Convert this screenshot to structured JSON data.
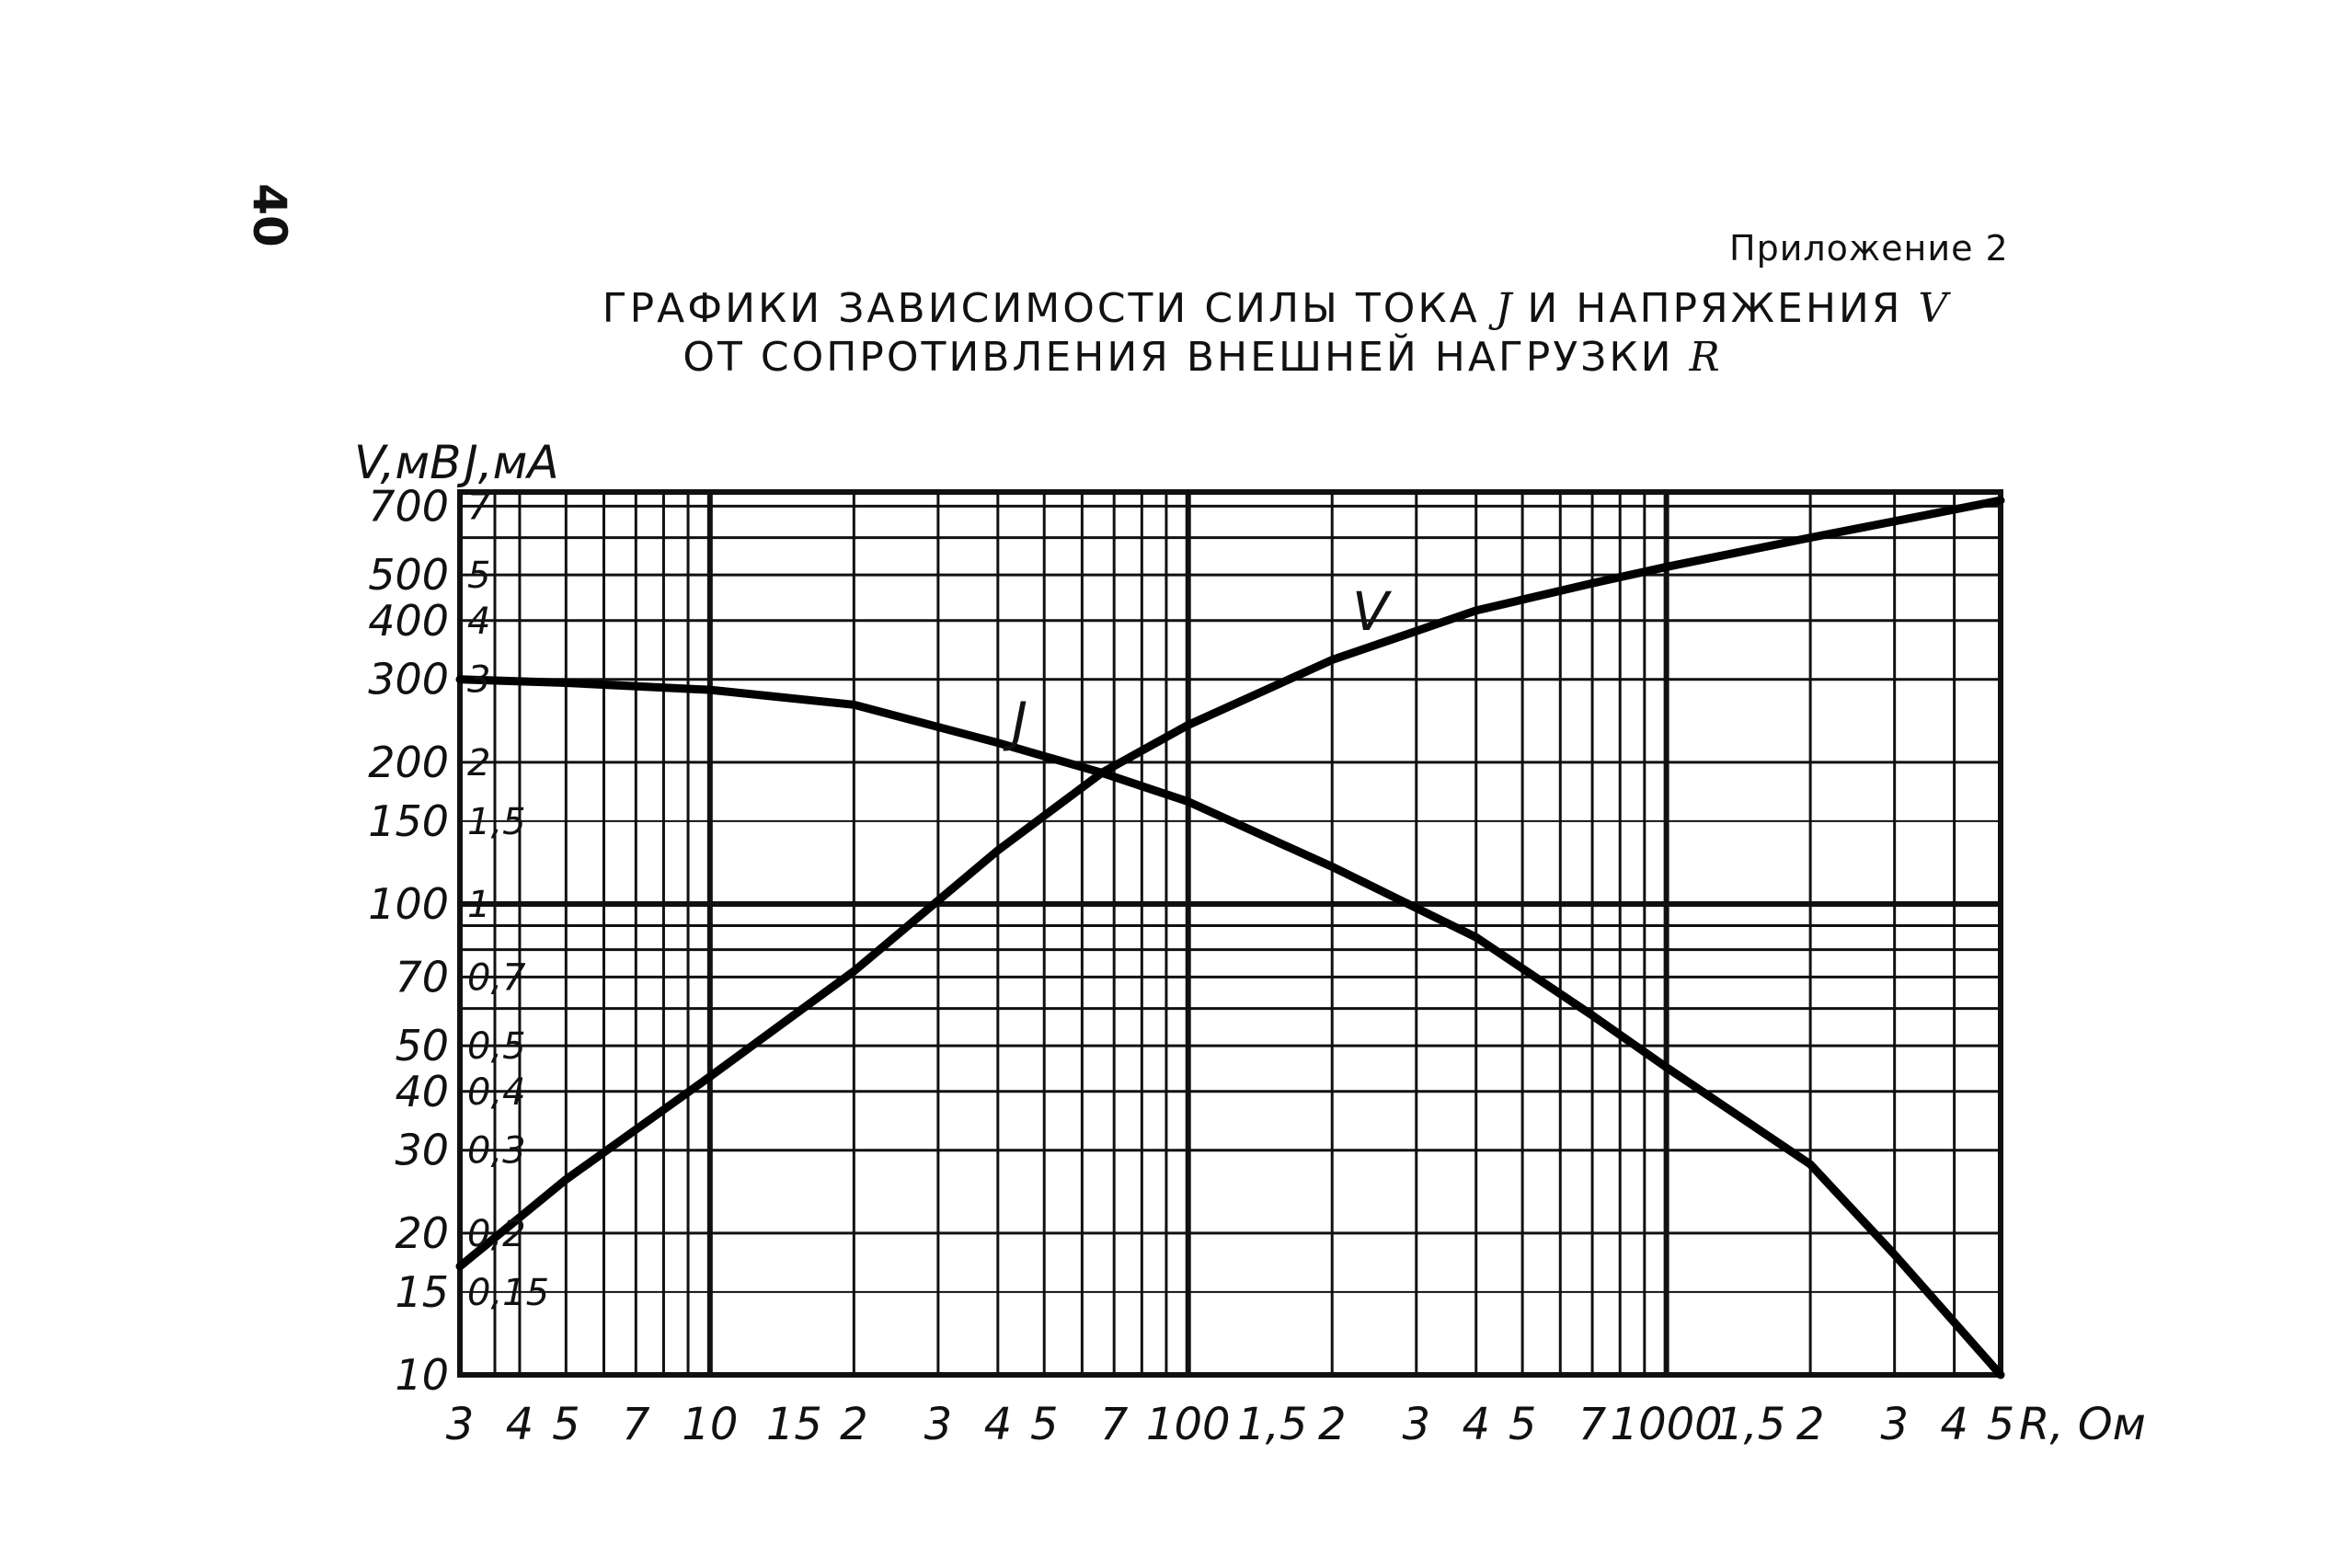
{
  "page_number": "40",
  "appendix": "Приложение 2",
  "title": {
    "line1": "ГРАФИКИ ЗАВИСИМОСТИ СИЛЫ ТОКА",
    "line1_var1": "J",
    "line1_mid": "И НАПРЯЖЕНИЯ",
    "line1_var2": "V",
    "line2": "ОТ СОПРОТИВЛЕНИЯ ВНЕШНЕЙ НАГРУЗКИ",
    "line2_var": "R"
  },
  "chart_data": {
    "type": "line",
    "x_scale": "log",
    "y_scale": "log",
    "xlim": [
      3,
      5000
    ],
    "ylim_voltage": [
      10,
      750
    ],
    "ylim_current": [
      0.1,
      7.5
    ],
    "xlabel": "R, Ом",
    "ylabel_voltage": "V,мВ",
    "ylabel_current": "J,мА",
    "x_tick_labels": [
      "3",
      "4",
      "5",
      "7",
      "10",
      "15",
      "2",
      "3",
      "4",
      "5",
      "7",
      "100",
      "1,5",
      "2",
      "3",
      "4",
      "5",
      "7",
      "1000",
      "1,5",
      "2",
      "3",
      "4",
      "5"
    ],
    "x_tick_values": [
      3,
      4,
      5,
      7,
      10,
      15,
      20,
      30,
      40,
      50,
      70,
      100,
      150,
      200,
      300,
      400,
      500,
      700,
      1000,
      1500,
      2000,
      3000,
      4000,
      5000
    ],
    "y_voltage_tick_labels": [
      "700",
      "500",
      "400",
      "300",
      "200",
      "150",
      "100",
      "70",
      "50",
      "40",
      "30",
      "20",
      "15",
      "10"
    ],
    "y_voltage_tick_values": [
      700,
      500,
      400,
      300,
      200,
      150,
      100,
      70,
      50,
      40,
      30,
      20,
      15,
      10
    ],
    "y_current_tick_labels": [
      "7",
      "5",
      "4",
      "3",
      "2",
      "1,5",
      "1",
      "0,7",
      "0,5",
      "0,4",
      "0,3",
      "0,2",
      "0,15"
    ],
    "y_current_tick_values": [
      7,
      5,
      4,
      3,
      2,
      1.5,
      1,
      0.7,
      0.5,
      0.4,
      0.3,
      0.2,
      0.15
    ],
    "grid": true,
    "series": [
      {
        "name": "J",
        "axis": "current",
        "x": [
          3,
          5,
          10,
          20,
          40,
          66,
          100,
          200,
          400,
          700,
          1000,
          2000,
          3000,
          5000
        ],
        "y": [
          3.0,
          2.95,
          2.85,
          2.65,
          2.2,
          1.9,
          1.65,
          1.2,
          0.85,
          0.58,
          0.45,
          0.28,
          0.18,
          0.1
        ]
      },
      {
        "name": "V",
        "axis": "voltage",
        "x": [
          3,
          5,
          10,
          20,
          40,
          66,
          100,
          200,
          400,
          700,
          1000,
          2000,
          3000,
          5000
        ],
        "y": [
          17,
          26,
          43,
          72,
          130,
          190,
          240,
          330,
          420,
          480,
          520,
          600,
          650,
          720
        ]
      }
    ],
    "annotations": [
      {
        "text": "J",
        "near": "current curve above intersection"
      },
      {
        "text": "V",
        "near": "voltage curve upper middle"
      }
    ]
  }
}
